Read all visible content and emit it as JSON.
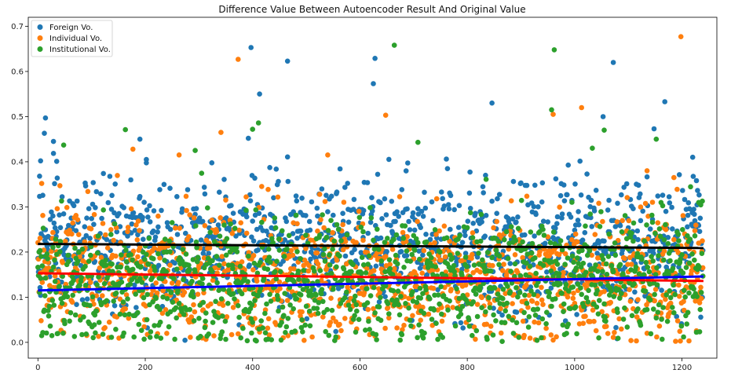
{
  "chart_data": {
    "type": "scatter",
    "title": "Difference Value Between Autoencoder Result And Original Value",
    "xlabel": "",
    "ylabel": "",
    "xlim": [
      -18,
      1265
    ],
    "ylim": [
      -0.035,
      0.72
    ],
    "xticks": [
      0,
      200,
      400,
      600,
      800,
      1000,
      1200
    ],
    "yticks": [
      0.0,
      0.1,
      0.2,
      0.3,
      0.4,
      0.5,
      0.6,
      0.7
    ],
    "grid": false,
    "legend_position": "upper-left",
    "n_points_per_series": 1240,
    "series": [
      {
        "name": "Foreign Vo.",
        "color": "#1f77b4",
        "mean_trend": [
          [
            0,
            0.21
          ],
          [
            1240,
            0.22
          ]
        ],
        "spread": 0.07,
        "highlights": [
          {
            "x": 3,
            "y": 0.368
          },
          {
            "x": 5,
            "y": 0.402
          },
          {
            "x": 12,
            "y": 0.463
          },
          {
            "x": 14,
            "y": 0.497
          },
          {
            "x": 29,
            "y": 0.445
          },
          {
            "x": 35,
            "y": 0.401
          },
          {
            "x": 190,
            "y": 0.45
          },
          {
            "x": 202,
            "y": 0.405
          },
          {
            "x": 397,
            "y": 0.653
          },
          {
            "x": 392,
            "y": 0.452
          },
          {
            "x": 413,
            "y": 0.55
          },
          {
            "x": 465,
            "y": 0.623
          },
          {
            "x": 625,
            "y": 0.573
          },
          {
            "x": 628,
            "y": 0.629
          },
          {
            "x": 846,
            "y": 0.53
          },
          {
            "x": 1072,
            "y": 0.62
          },
          {
            "x": 1053,
            "y": 0.5
          },
          {
            "x": 1168,
            "y": 0.533
          },
          {
            "x": 1148,
            "y": 0.473
          },
          {
            "x": 1220,
            "y": 0.41
          }
        ]
      },
      {
        "name": "Individual Vo.",
        "color": "#ff7f0e",
        "mean_trend": [
          [
            0,
            0.152
          ],
          [
            1240,
            0.135
          ]
        ],
        "spread": 0.07,
        "highlights": [
          {
            "x": 373,
            "y": 0.627
          },
          {
            "x": 648,
            "y": 0.503
          },
          {
            "x": 1198,
            "y": 0.677
          },
          {
            "x": 1013,
            "y": 0.52
          },
          {
            "x": 177,
            "y": 0.428
          },
          {
            "x": 263,
            "y": 0.415
          },
          {
            "x": 341,
            "y": 0.465
          },
          {
            "x": 540,
            "y": 0.415
          },
          {
            "x": 960,
            "y": 0.505
          },
          {
            "x": 1135,
            "y": 0.38
          },
          {
            "x": 1185,
            "y": 0.365
          }
        ]
      },
      {
        "name": "Institutional Vo.",
        "color": "#2ca02c",
        "mean_trend": [
          [
            0,
            0.115
          ],
          [
            1240,
            0.15
          ]
        ],
        "spread": 0.07,
        "highlights": [
          {
            "x": 664,
            "y": 0.658
          },
          {
            "x": 962,
            "y": 0.648
          },
          {
            "x": 957,
            "y": 0.515
          },
          {
            "x": 411,
            "y": 0.486
          },
          {
            "x": 400,
            "y": 0.472
          },
          {
            "x": 163,
            "y": 0.471
          },
          {
            "x": 48,
            "y": 0.437
          },
          {
            "x": 293,
            "y": 0.425
          },
          {
            "x": 1055,
            "y": 0.47
          },
          {
            "x": 1033,
            "y": 0.43
          },
          {
            "x": 1152,
            "y": 0.45
          },
          {
            "x": 708,
            "y": 0.443
          }
        ]
      }
    ],
    "trend_lines": [
      {
        "color": "#000000",
        "x": [
          0,
          1240
        ],
        "y": [
          0.218,
          0.209
        ]
      },
      {
        "color": "#ff0000",
        "x": [
          0,
          1240
        ],
        "y": [
          0.153,
          0.136
        ]
      },
      {
        "color": "#0000ff",
        "x": [
          0,
          1240
        ],
        "y": [
          0.115,
          0.146
        ]
      }
    ]
  }
}
